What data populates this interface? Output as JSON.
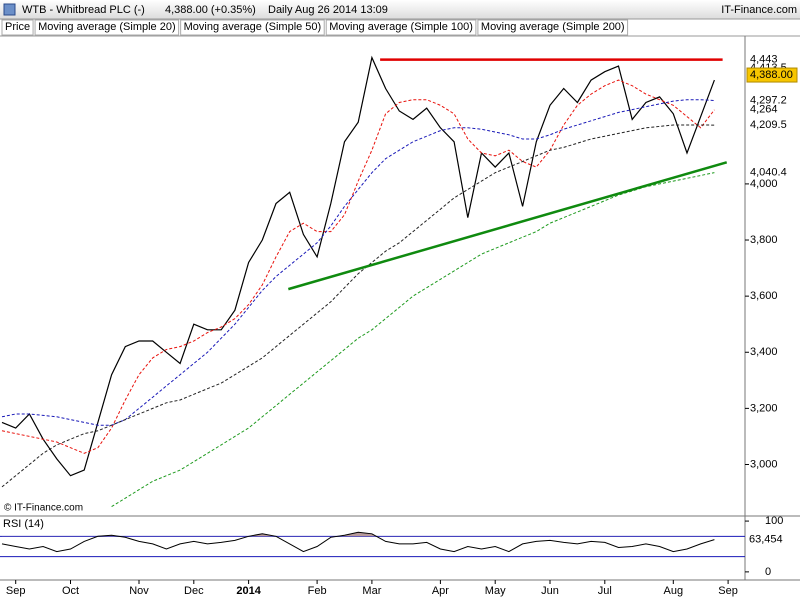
{
  "chart_data": {
    "type": "line",
    "title": "WTB - Whitbread PLC (-)",
    "quote": "4,388.00 (+0.35%)",
    "period": "Daily  Aug 26 2014 13:09",
    "source": "IT-Finance.com",
    "copyright": "© IT-Finance.com",
    "categories": [
      null,
      "Sep",
      null,
      null,
      null,
      "Oct",
      null,
      null,
      null,
      null,
      "Nov",
      null,
      null,
      null,
      "Dec",
      null,
      null,
      null,
      "2014",
      null,
      null,
      null,
      null,
      "Feb",
      null,
      null,
      null,
      "Mar",
      null,
      null,
      null,
      null,
      "Apr",
      null,
      null,
      null,
      "May",
      null,
      null,
      null,
      "Jun",
      null,
      null,
      null,
      "Jul",
      null,
      null,
      null,
      null,
      "Aug",
      null,
      null,
      null,
      "Sep"
    ],
    "series": [
      {
        "name": "Price",
        "color": "#000000",
        "values": [
          3150,
          3130,
          3180,
          3090,
          3020,
          2960,
          2980,
          3150,
          3320,
          3420,
          3440,
          3440,
          3400,
          3360,
          3500,
          3480,
          3480,
          3550,
          3720,
          3800,
          3930,
          3970,
          3820,
          3740,
          3930,
          4150,
          4220,
          4450,
          4340,
          4260,
          4230,
          4270,
          4200,
          4150,
          3880,
          4110,
          4060,
          4110,
          3920,
          4150,
          4280,
          4340,
          4290,
          4370,
          4400,
          4420,
          4230,
          4290,
          4310,
          4250,
          4110,
          4240,
          4370,
          null
        ]
      },
      {
        "name": "Moving average (Simple 20)",
        "color": "#e8120c",
        "values": [
          3120,
          3110,
          3100,
          3090,
          3080,
          3060,
          3040,
          3060,
          3130,
          3230,
          3320,
          3380,
          3410,
          3420,
          3440,
          3470,
          3490,
          3520,
          3570,
          3640,
          3740,
          3830,
          3860,
          3830,
          3830,
          3890,
          4010,
          4120,
          4250,
          4290,
          4300,
          4300,
          4280,
          4250,
          4160,
          4110,
          4100,
          4120,
          4080,
          4060,
          4120,
          4210,
          4280,
          4320,
          4350,
          4370,
          4350,
          4320,
          4300,
          4280,
          4240,
          4200,
          4264,
          null
        ]
      },
      {
        "name": "Moving average (Simple 50)",
        "color": "#1a1ab8",
        "values": [
          3170,
          3180,
          3180,
          3175,
          3170,
          3160,
          3150,
          3140,
          3140,
          3160,
          3200,
          3240,
          3280,
          3320,
          3360,
          3400,
          3450,
          3500,
          3560,
          3620,
          3670,
          3710,
          3750,
          3790,
          3850,
          3920,
          3980,
          4040,
          4090,
          4120,
          4150,
          4170,
          4190,
          4200,
          4200,
          4195,
          4185,
          4175,
          4160,
          4160,
          4175,
          4195,
          4210,
          4225,
          4240,
          4255,
          4265,
          4275,
          4285,
          4295,
          4300,
          4300,
          4297.2,
          null
        ]
      },
      {
        "name": "Moving average (Simple 100)",
        "color": "#222222",
        "values": [
          2920,
          2960,
          3000,
          3040,
          3070,
          3090,
          3110,
          3120,
          3140,
          3160,
          3180,
          3200,
          3220,
          3230,
          3250,
          3270,
          3290,
          3320,
          3350,
          3380,
          3420,
          3460,
          3500,
          3540,
          3580,
          3630,
          3680,
          3720,
          3760,
          3790,
          3830,
          3870,
          3910,
          3950,
          3980,
          4010,
          4040,
          4060,
          4080,
          4100,
          4120,
          4130,
          4145,
          4160,
          4170,
          4180,
          4190,
          4200,
          4205,
          4210,
          4210,
          4210,
          4209.5,
          null
        ]
      },
      {
        "name": "Moving average (Simple 200)",
        "color": "#1e9a1e",
        "values": [
          null,
          null,
          null,
          null,
          null,
          null,
          null,
          null,
          2850,
          2880,
          2910,
          2940,
          2960,
          2980,
          3010,
          3040,
          3070,
          3100,
          3130,
          3170,
          3210,
          3250,
          3290,
          3330,
          3370,
          3410,
          3450,
          3480,
          3520,
          3560,
          3600,
          3630,
          3660,
          3690,
          3720,
          3750,
          3770,
          3790,
          3810,
          3830,
          3860,
          3880,
          3900,
          3920,
          3940,
          3960,
          3975,
          3990,
          4000,
          4010,
          4020,
          4030,
          4040.4,
          null
        ]
      }
    ],
    "trendlines": [
      {
        "color": "#e00000",
        "points": [
          [
            27.6,
            4443
          ],
          [
            52.6,
            4443
          ]
        ]
      },
      {
        "color": "#0f8a0f",
        "points": [
          [
            20.9,
            3625
          ],
          [
            52.9,
            4077
          ]
        ]
      }
    ],
    "price_tags": [
      {
        "value": 4443,
        "label": "4,443",
        "color": "#e00000"
      },
      {
        "value": 4413.5,
        "label": "4,413.5",
        "color": "#000000"
      },
      {
        "value": 4388,
        "label": "4,388.00",
        "color": "#000000"
      },
      {
        "value": 4297.2,
        "label": "4,297.2",
        "color": "#1a1ab8"
      },
      {
        "value": 4264,
        "label": "4,264",
        "color": "#e00000"
      },
      {
        "value": 4209.5,
        "label": "4,209.5",
        "color": "#000000"
      },
      {
        "value": 4040.4,
        "label": "4,040.4",
        "color": "#1e9a1e"
      }
    ],
    "ylim": [
      2820,
      4520
    ],
    "yticks": [
      {
        "value": 3000,
        "label": "3,000"
      },
      {
        "value": 3200,
        "label": "3,200"
      },
      {
        "value": 3400,
        "label": "3,400"
      },
      {
        "value": 3600,
        "label": "3,600"
      },
      {
        "value": 3800,
        "label": "3,800"
      },
      {
        "value": 4000,
        "label": "4,000"
      }
    ],
    "rsi": {
      "name": "RSI (14)",
      "color": "#000000",
      "fill": "#b89a9a",
      "values": [
        55,
        50,
        45,
        50,
        40,
        45,
        60,
        70,
        72,
        68,
        60,
        55,
        45,
        55,
        60,
        55,
        58,
        62,
        70,
        75,
        70,
        55,
        40,
        50,
        68,
        72,
        78,
        75,
        60,
        55,
        55,
        58,
        45,
        40,
        50,
        45,
        50,
        40,
        55,
        60,
        62,
        58,
        55,
        60,
        58,
        48,
        50,
        55,
        50,
        40,
        45,
        55,
        63.454,
        null
      ],
      "ylim": [
        -16,
        110
      ],
      "yticks": [
        0,
        100
      ],
      "levels": [
        70,
        30
      ],
      "level_color": "#1a1ab8",
      "tag": {
        "value": 63.454,
        "label": "63,454"
      }
    }
  }
}
